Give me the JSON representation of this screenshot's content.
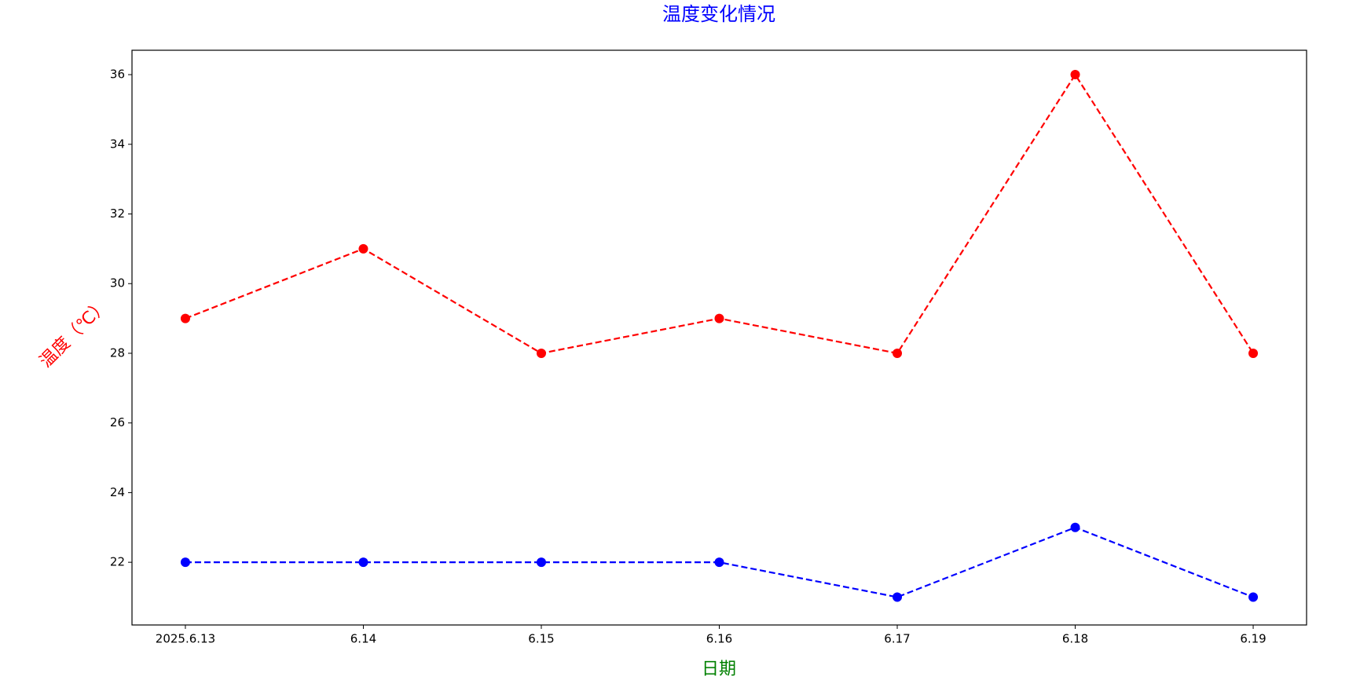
{
  "chart_data": {
    "type": "line",
    "title": "温度变化情况",
    "title_color": "#0000ff",
    "x_label": "日期",
    "x_label_color": "#008000",
    "y_label": "温度（℃）",
    "y_label_color": "#ff0000",
    "categories": [
      "2025.6.13",
      "6.14",
      "6.15",
      "6.16",
      "6.17",
      "6.18",
      "6.19"
    ],
    "series": [
      {
        "color": "#ff0000",
        "values": [
          29,
          31,
          28,
          29,
          28,
          36,
          28
        ]
      },
      {
        "color": "#0000ff",
        "values": [
          22,
          22,
          22,
          22,
          21,
          23,
          21
        ]
      }
    ],
    "line_style": "dashed",
    "marker": "circle",
    "ylim": [
      20.2,
      36.7
    ],
    "yticks": [
      22,
      24,
      26,
      28,
      30,
      32,
      34,
      36
    ],
    "grid": false
  }
}
